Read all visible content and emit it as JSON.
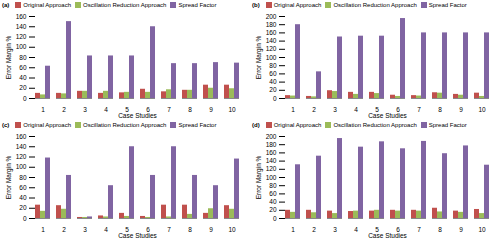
{
  "chart_data": [
    {
      "type": "bar",
      "title": "(a)",
      "x_label": "Case Studies",
      "y_label": "Error Margin %",
      "categories": [
        "1",
        "2",
        "3",
        "4",
        "5",
        "6",
        "7",
        "8",
        "9",
        "10"
      ],
      "series": [
        {
          "name": "Original Approach",
          "color": "#c0504d",
          "values": [
            10,
            10,
            14,
            10,
            11,
            18,
            13,
            16,
            26,
            26
          ]
        },
        {
          "name": "Oscillation Reduction Approach",
          "color": "#9bbb59",
          "values": [
            7,
            9,
            14,
            14,
            12,
            12,
            17,
            16,
            20,
            19
          ]
        },
        {
          "name": "Spread Factor",
          "color": "#8064a2",
          "values": [
            63,
            150,
            83,
            83,
            83,
            140,
            68,
            68,
            70,
            69
          ]
        }
      ],
      "ylim": [
        0,
        160
      ],
      "yticks": [
        0,
        20,
        40,
        60,
        80,
        100,
        120,
        140,
        160
      ],
      "grid": false,
      "legend": "top"
    },
    {
      "type": "bar",
      "title": "(b)",
      "x_label": "Case Studies",
      "y_label": "Error Margin %",
      "categories": [
        "1",
        "2",
        "3",
        "4",
        "5",
        "6",
        "7",
        "8",
        "9",
        "10"
      ],
      "series": [
        {
          "name": "Original Approach",
          "color": "#c0504d",
          "values": [
            7,
            5,
            19,
            15,
            15,
            8,
            7,
            14,
            10,
            13
          ]
        },
        {
          "name": "Oscillation Reduction Approach",
          "color": "#9bbb59",
          "values": [
            6,
            4,
            17,
            10,
            12,
            5,
            6,
            13,
            8,
            5
          ]
        },
        {
          "name": "Spread Factor",
          "color": "#8064a2",
          "values": [
            180,
            65,
            150,
            152,
            152,
            195,
            160,
            160,
            160,
            160
          ]
        }
      ],
      "ylim": [
        0,
        200
      ],
      "yticks": [
        0,
        20,
        40,
        60,
        80,
        100,
        120,
        140,
        160,
        180,
        200
      ],
      "grid": false,
      "legend": "top"
    },
    {
      "type": "bar",
      "title": "(c)",
      "x_label": "Case Studies",
      "y_label": "Error Margin %",
      "categories": [
        "1",
        "2",
        "3",
        "4",
        "5",
        "6",
        "7",
        "8",
        "9",
        "10"
      ],
      "series": [
        {
          "name": "Original Approach",
          "color": "#c0504d",
          "values": [
            26,
            25,
            2,
            5,
            10,
            4,
            26,
            26,
            10,
            25
          ]
        },
        {
          "name": "Oscillation Reduction Approach",
          "color": "#9bbb59",
          "values": [
            14,
            18,
            2,
            3,
            4,
            2,
            3,
            8,
            19,
            18
          ]
        },
        {
          "name": "Spread Factor",
          "color": "#8064a2",
          "values": [
            118,
            84,
            3,
            64,
            140,
            84,
            140,
            84,
            64,
            116
          ]
        }
      ],
      "ylim": [
        0,
        160
      ],
      "yticks": [
        0,
        20,
        40,
        60,
        80,
        100,
        120,
        140,
        160
      ],
      "grid": false,
      "legend": "top"
    },
    {
      "type": "bar",
      "title": "(d)",
      "x_label": "Case Studies",
      "y_label": "Error Margin %",
      "categories": [
        "1",
        "2",
        "3",
        "4",
        "5",
        "6",
        "7",
        "8",
        "9",
        "10"
      ],
      "series": [
        {
          "name": "Original Approach",
          "color": "#c0504d",
          "values": [
            20,
            20,
            18,
            17,
            18,
            20,
            20,
            25,
            18,
            22
          ]
        },
        {
          "name": "Oscillation Reduction Approach",
          "color": "#9bbb59",
          "values": [
            15,
            14,
            12,
            18,
            20,
            18,
            18,
            16,
            15,
            12
          ]
        },
        {
          "name": "Spread Factor",
          "color": "#8064a2",
          "values": [
            131,
            152,
            195,
            174,
            187,
            170,
            188,
            158,
            177,
            130
          ]
        }
      ],
      "ylim": [
        0,
        200
      ],
      "yticks": [
        0,
        20,
        40,
        60,
        80,
        100,
        120,
        140,
        160,
        180,
        200
      ],
      "grid": false,
      "legend": "top"
    }
  ]
}
